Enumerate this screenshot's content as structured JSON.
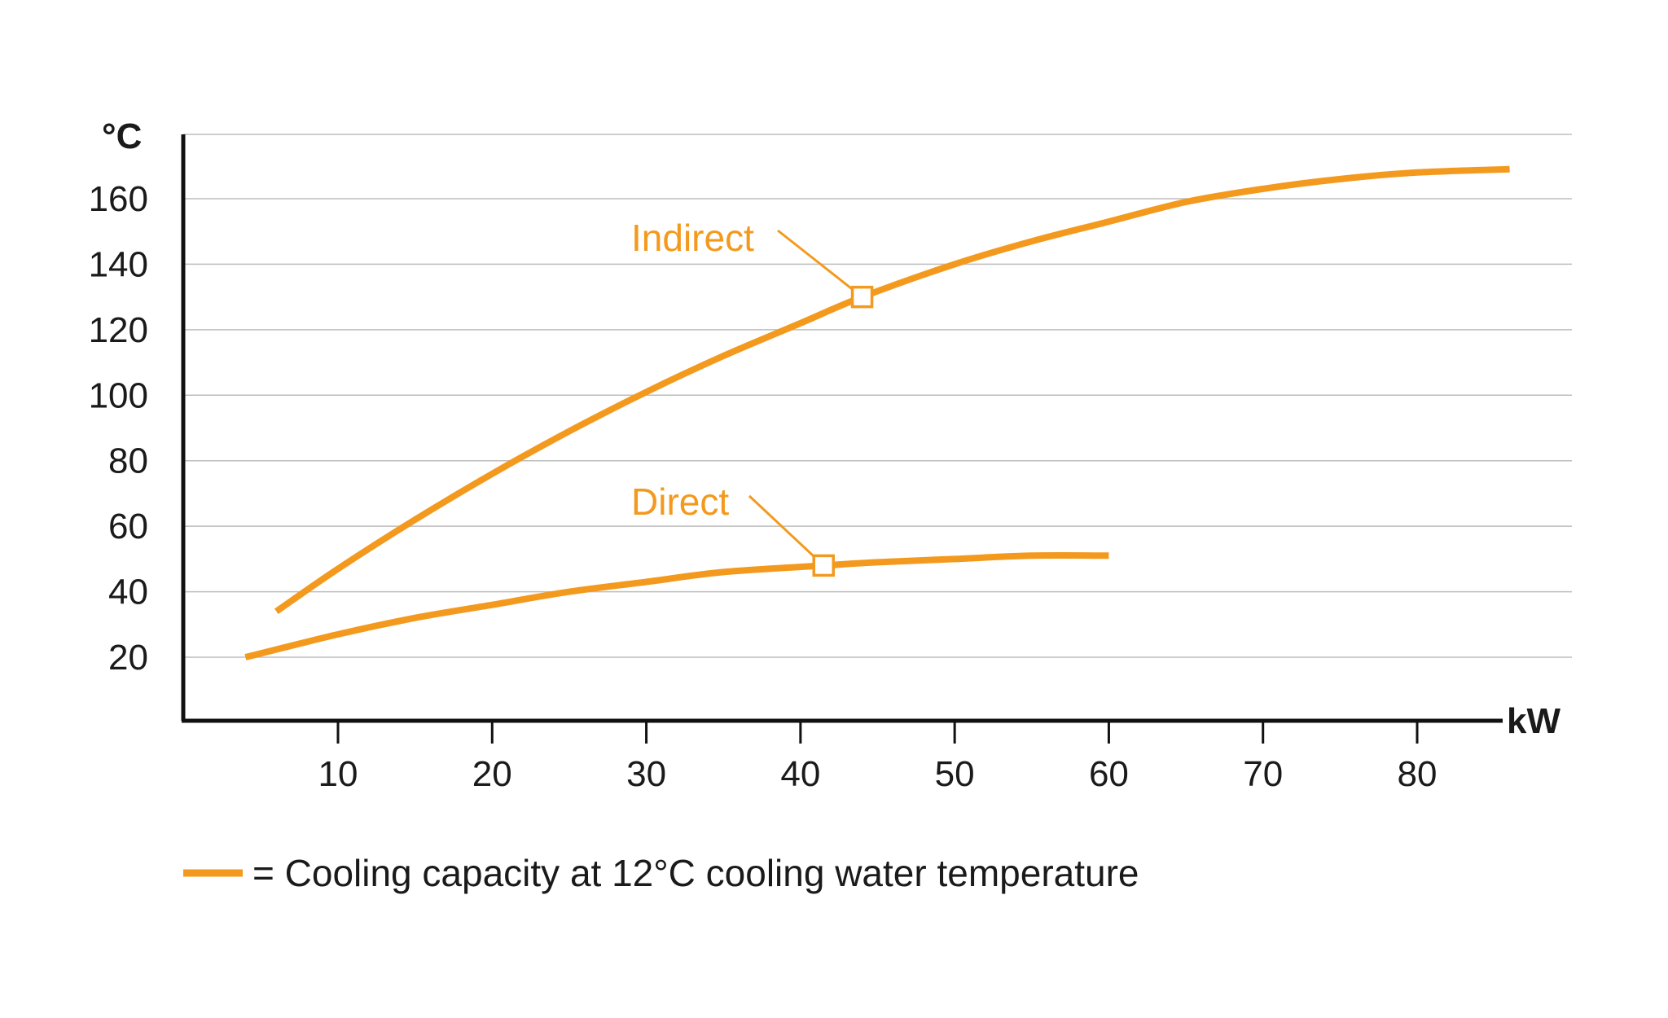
{
  "chart_data": {
    "type": "line",
    "ylabel": "°C",
    "xlabel": "kW",
    "xlim": [
      0,
      90
    ],
    "ylim": [
      0,
      180
    ],
    "x_ticks": [
      10,
      20,
      30,
      40,
      50,
      60,
      70,
      80
    ],
    "y_ticks": [
      20,
      40,
      60,
      80,
      100,
      120,
      140,
      160
    ],
    "grid": true,
    "line_color": "#f39a1e",
    "series": [
      {
        "name": "Indirect",
        "x": [
          6,
          10,
          15,
          20,
          25,
          30,
          35,
          40,
          44,
          50,
          55,
          60,
          65,
          70,
          75,
          80,
          86
        ],
        "y": [
          34,
          47,
          62,
          76,
          89,
          101,
          112,
          122,
          130,
          140,
          147,
          153,
          159,
          163,
          166,
          168,
          169
        ],
        "marker": {
          "x": 44,
          "y": 130
        }
      },
      {
        "name": "Direct",
        "x": [
          4,
          10,
          15,
          20,
          25,
          30,
          35,
          41.5,
          45,
          50,
          55,
          60
        ],
        "y": [
          20,
          27,
          32,
          36,
          40,
          43,
          46,
          48,
          49,
          50,
          51,
          51
        ],
        "marker": {
          "x": 41.5,
          "y": 48
        }
      }
    ],
    "legend": {
      "text": "= Cooling capacity at 12°C cooling water temperature",
      "placement": "bottom-left"
    }
  }
}
